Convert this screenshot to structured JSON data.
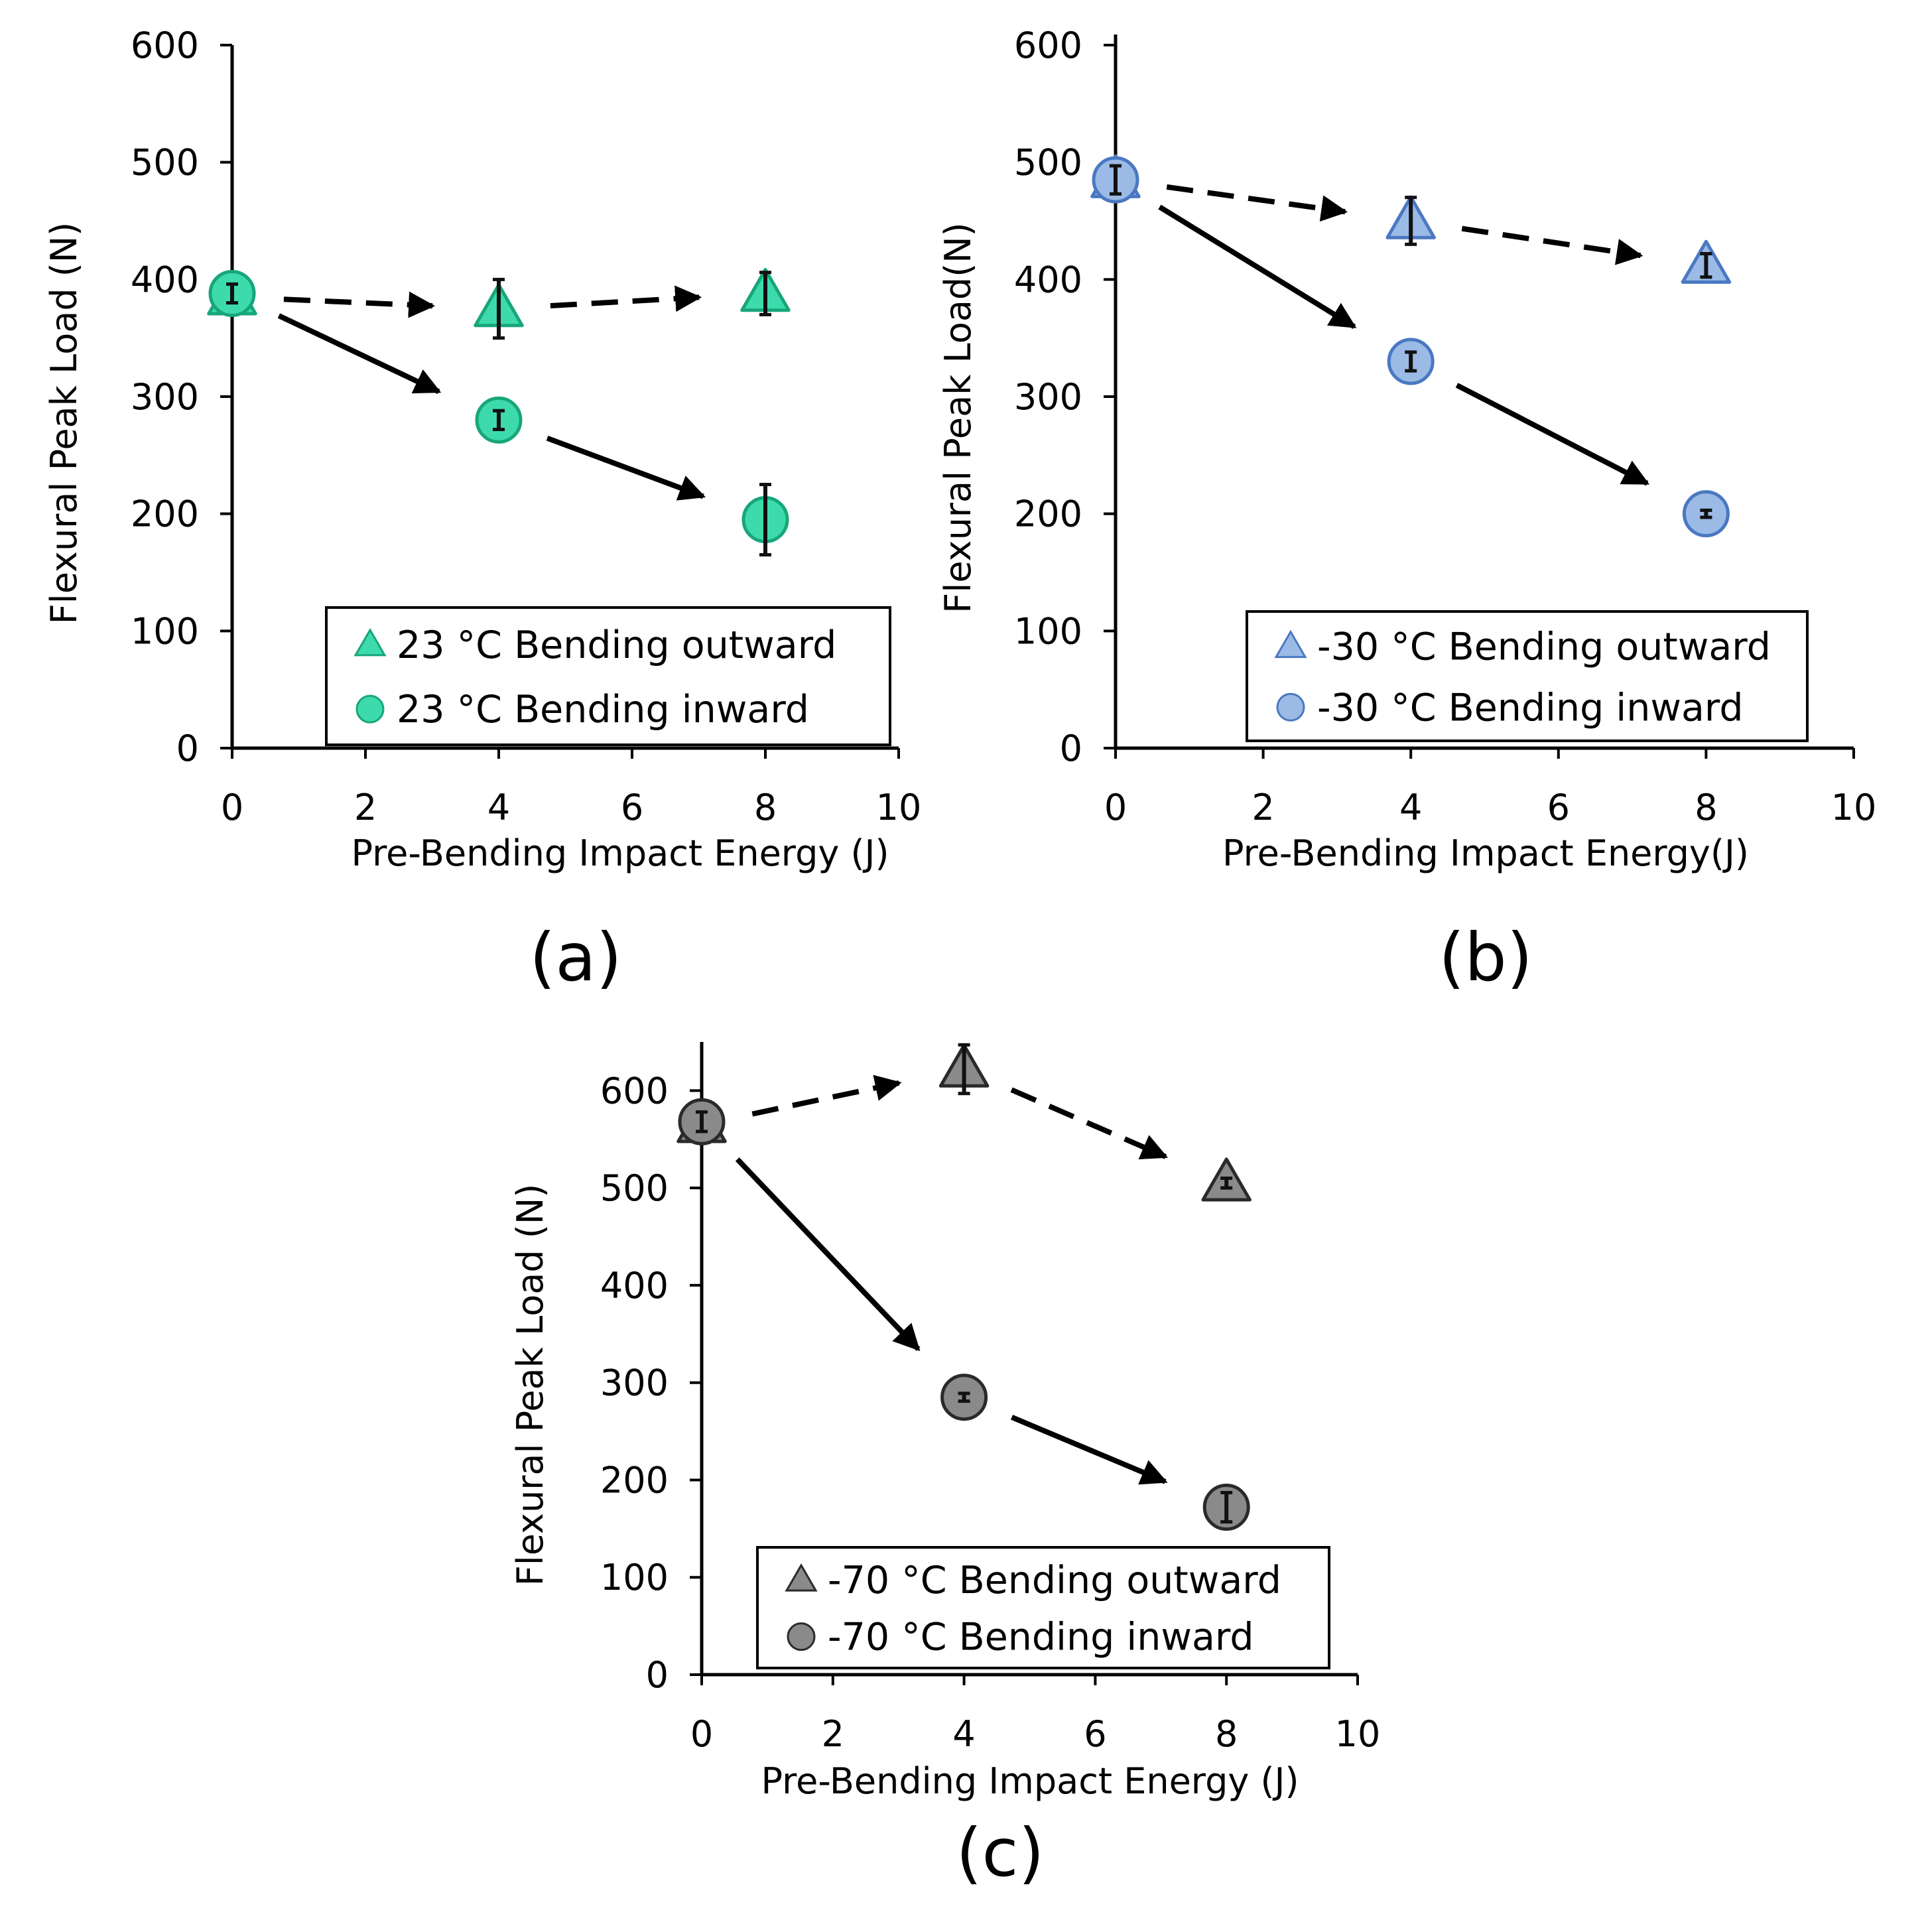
{
  "colors": {
    "axis": "#000000",
    "arrow": "#000000",
    "panel_a_fill": "#3ddbac",
    "panel_a_edge": "#17a67a",
    "panel_b_fill": "#9bbbe6",
    "panel_b_edge": "#4a78c2",
    "panel_c_fill": "#8a8a8a",
    "panel_c_edge": "#2a2a2a"
  },
  "chart_data": [
    {
      "panel": "(a)",
      "type": "scatter",
      "xlabel": "Pre-Bending Impact Energy (J)",
      "ylabel": "Flexural Peak Load (N)",
      "xlim": [
        0,
        10
      ],
      "ylim": [
        0,
        600
      ],
      "xticks": [
        "0",
        "2",
        "4",
        "6",
        "8",
        "10"
      ],
      "yticks": [
        "0",
        "100",
        "200",
        "300",
        "400",
        "500",
        "600"
      ],
      "legend_position": "bottom-right",
      "series": [
        {
          "name": "23 °C Bending outward",
          "marker": "triangle",
          "x": [
            0,
            4,
            8
          ],
          "y": [
            385,
            375,
            388
          ],
          "err": [
            8,
            25,
            18
          ],
          "arrow_style": "dashed"
        },
        {
          "name": "23 °C Bending inward",
          "marker": "circle",
          "x": [
            0,
            4,
            8
          ],
          "y": [
            388,
            280,
            195
          ],
          "err": [
            8,
            8,
            30
          ],
          "arrow_style": "solid"
        }
      ]
    },
    {
      "panel": "(b)",
      "type": "scatter",
      "xlabel": "Pre-Bending Impact Energy(J)",
      "ylabel": "Flexural Peak Load(N)",
      "xlim": [
        0,
        10
      ],
      "ylim": [
        0,
        600
      ],
      "xticks": [
        "0",
        "2",
        "4",
        "6",
        "8",
        "10"
      ],
      "yticks": [
        "0",
        "100",
        "200",
        "300",
        "400",
        "500",
        "600"
      ],
      "legend_position": "bottom-right",
      "series": [
        {
          "name": "-30 °C Bending outward",
          "marker": "triangle",
          "x": [
            0,
            4,
            8
          ],
          "y": [
            485,
            450,
            412
          ],
          "err": [
            12,
            20,
            10
          ],
          "arrow_style": "dashed"
        },
        {
          "name": "-30 °C Bending inward",
          "marker": "circle",
          "x": [
            0,
            4,
            8
          ],
          "y": [
            485,
            330,
            200
          ],
          "err": [
            12,
            8,
            3
          ],
          "arrow_style": "solid"
        }
      ]
    },
    {
      "panel": "(c)",
      "type": "scatter",
      "xlabel": "Pre-Bending Impact Energy (J)",
      "ylabel": "Flexural Peak Load (N)",
      "xlim": [
        0,
        10
      ],
      "ylim": [
        0,
        650
      ],
      "xticks": [
        "0",
        "2",
        "4",
        "6",
        "8",
        "10"
      ],
      "yticks": [
        "0",
        "100",
        "200",
        "300",
        "400",
        "500",
        "600"
      ],
      "legend_position": "bottom-right",
      "series": [
        {
          "name": "-70 °C Bending outward",
          "marker": "triangle",
          "x": [
            0,
            4,
            8
          ],
          "y": [
            565,
            622,
            505
          ],
          "err": [
            10,
            25,
            5
          ],
          "arrow_style": "dashed"
        },
        {
          "name": "-70 °C Bending inward",
          "marker": "circle",
          "x": [
            0,
            4,
            8
          ],
          "y": [
            568,
            285,
            172
          ],
          "err": [
            10,
            4,
            15
          ],
          "arrow_style": "solid"
        }
      ]
    }
  ]
}
